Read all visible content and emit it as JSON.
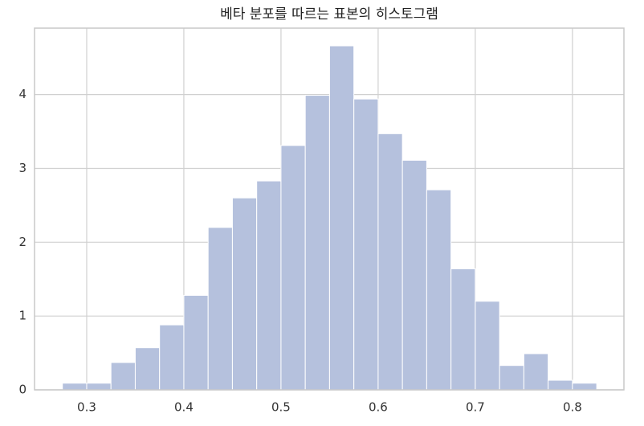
{
  "chart_data": {
    "type": "histogram",
    "title": "베타 분포를 따르는 표본의 히스토그램",
    "bins": [
      0.275,
      0.3,
      0.325,
      0.35,
      0.375,
      0.4,
      0.425,
      0.45,
      0.475,
      0.5,
      0.525,
      0.55,
      0.575,
      0.6,
      0.625,
      0.65,
      0.675,
      0.7,
      0.725,
      0.75,
      0.775,
      0.8,
      0.825
    ],
    "values": [
      0.09,
      0.09,
      0.37,
      0.57,
      0.88,
      1.28,
      2.2,
      2.6,
      2.83,
      3.31,
      3.99,
      4.66,
      3.94,
      3.47,
      3.11,
      2.71,
      1.64,
      1.2,
      0.33,
      0.49,
      0.13,
      0.09
    ],
    "color": "#b5c1dd",
    "xlim": [
      0.2463,
      0.853
    ],
    "xticks": [
      0.3,
      0.4,
      0.5,
      0.6,
      0.7,
      0.8
    ],
    "ylim": [
      0,
      4.9
    ],
    "yticks": [
      0,
      1,
      2,
      3,
      4
    ],
    "grid": true
  }
}
